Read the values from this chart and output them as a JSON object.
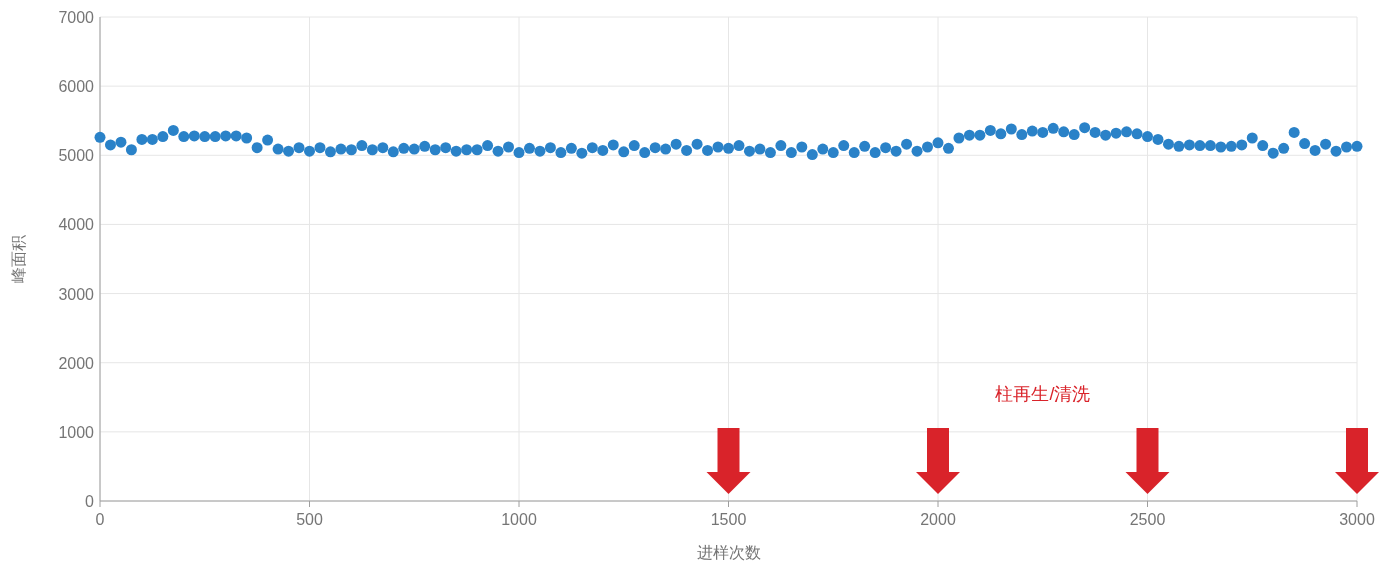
{
  "chart_data": {
    "type": "scatter",
    "xlabel": "进样次数",
    "ylabel": "峰面积",
    "x": [
      0,
      25,
      50,
      75,
      100,
      125,
      150,
      175,
      200,
      225,
      250,
      275,
      300,
      325,
      350,
      375,
      400,
      425,
      450,
      475,
      500,
      525,
      550,
      575,
      600,
      625,
      650,
      675,
      700,
      725,
      750,
      775,
      800,
      825,
      850,
      875,
      900,
      925,
      950,
      975,
      1000,
      1025,
      1050,
      1075,
      1100,
      1125,
      1150,
      1175,
      1200,
      1225,
      1250,
      1275,
      1300,
      1325,
      1350,
      1375,
      1400,
      1425,
      1450,
      1475,
      1500,
      1525,
      1550,
      1575,
      1600,
      1625,
      1650,
      1675,
      1700,
      1725,
      1750,
      1775,
      1800,
      1825,
      1850,
      1875,
      1900,
      1925,
      1950,
      1975,
      2000,
      2025,
      2050,
      2075,
      2100,
      2125,
      2150,
      2175,
      2200,
      2225,
      2250,
      2275,
      2300,
      2325,
      2350,
      2375,
      2400,
      2425,
      2450,
      2475,
      2500,
      2525,
      2550,
      2575,
      2600,
      2625,
      2650,
      2675,
      2700,
      2725,
      2750,
      2775,
      2800,
      2825,
      2850,
      2875,
      2900,
      2925,
      2950,
      2975,
      3000
    ],
    "series": [
      {
        "color": "#2a82c8",
        "values": [
          5260,
          5150,
          5190,
          5080,
          5230,
          5230,
          5270,
          5360,
          5270,
          5280,
          5270,
          5270,
          5280,
          5280,
          5250,
          5110,
          5220,
          5090,
          5060,
          5110,
          5060,
          5110,
          5050,
          5090,
          5080,
          5140,
          5080,
          5110,
          5050,
          5100,
          5090,
          5130,
          5080,
          5110,
          5060,
          5080,
          5080,
          5140,
          5060,
          5120,
          5040,
          5100,
          5060,
          5110,
          5040,
          5100,
          5030,
          5110,
          5070,
          5150,
          5050,
          5140,
          5040,
          5110,
          5090,
          5160,
          5070,
          5160,
          5070,
          5120,
          5100,
          5140,
          5060,
          5090,
          5040,
          5140,
          5040,
          5120,
          5010,
          5090,
          5040,
          5140,
          5040,
          5130,
          5040,
          5110,
          5060,
          5160,
          5060,
          5120,
          5180,
          5100,
          5250,
          5290,
          5290,
          5360,
          5310,
          5380,
          5300,
          5350,
          5330,
          5390,
          5340,
          5300,
          5400,
          5330,
          5290,
          5320,
          5340,
          5310,
          5270,
          5230,
          5160,
          5130,
          5150,
          5140,
          5140,
          5120,
          5130,
          5150,
          5250,
          5140,
          5030,
          5100,
          5330,
          5170,
          5070,
          5160,
          5060,
          5120,
          5130
        ]
      }
    ],
    "marker": "circle",
    "grid": true,
    "xlim": [
      0,
      3000
    ],
    "xticks": [
      0,
      500,
      1000,
      1500,
      2000,
      2500,
      3000
    ],
    "ylim": [
      0,
      7000
    ],
    "yticks": [
      0,
      1000,
      2000,
      3000,
      4000,
      5000,
      6000,
      7000
    ],
    "annotations": [
      "柱再生/清洗"
    ],
    "ref_lines": [
      {
        "axis": "x",
        "value": 1500,
        "color": "#d9232a"
      },
      {
        "axis": "x",
        "value": 2000,
        "color": "#d9232a"
      },
      {
        "axis": "x",
        "value": 2500,
        "color": "#d9232a"
      },
      {
        "axis": "x",
        "value": 3000,
        "color": "#d9232a"
      }
    ]
  }
}
